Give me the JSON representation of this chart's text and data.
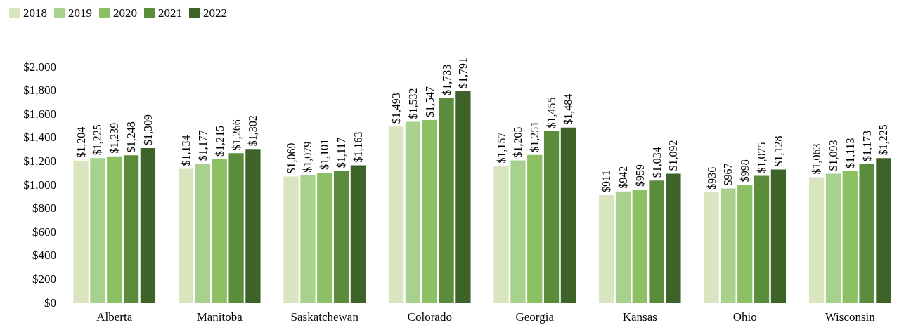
{
  "chart_data": {
    "type": "bar",
    "categories": [
      "Alberta",
      "Manitoba",
      "Saskatchewan",
      "Colorado",
      "Georgia",
      "Kansas",
      "Ohio",
      "Wisconsin"
    ],
    "series": [
      {
        "name": "2018",
        "color": "#d9e5bf",
        "values": [
          1204,
          1134,
          1069,
          1493,
          1157,
          911,
          936,
          1063
        ],
        "value_labels": [
          "$1,204",
          "$1,134",
          "$1,069",
          "$1,493",
          "$1,157",
          "$911",
          "$936",
          "$1,063"
        ]
      },
      {
        "name": "2019",
        "color": "#a9d18e",
        "values": [
          1225,
          1177,
          1079,
          1532,
          1205,
          942,
          967,
          1093
        ],
        "value_labels": [
          "$1,225",
          "$1,177",
          "$1,079",
          "$1,532",
          "$1,205",
          "$942",
          "$967",
          "$1,093"
        ]
      },
      {
        "name": "2020",
        "color": "#8cc063",
        "values": [
          1239,
          1215,
          1101,
          1547,
          1251,
          959,
          998,
          1113
        ],
        "value_labels": [
          "$1,239",
          "$1,215",
          "$1,101",
          "$1,547",
          "$1,251",
          "$959",
          "$998",
          "$1,113"
        ]
      },
      {
        "name": "2021",
        "color": "#5b8c3b",
        "values": [
          1248,
          1266,
          1117,
          1733,
          1455,
          1034,
          1075,
          1173
        ],
        "value_labels": [
          "$1,248",
          "$1,266",
          "$1,117",
          "$1,733",
          "$1,455",
          "$1,034",
          "$1,075",
          "$1,173"
        ]
      },
      {
        "name": "2022",
        "color": "#3e6329",
        "values": [
          1309,
          1302,
          1163,
          1791,
          1484,
          1092,
          1128,
          1225
        ],
        "value_labels": [
          "$1,309",
          "$1,302",
          "$1,163",
          "$1,791",
          "$1,484",
          "$1,092",
          "$1,128",
          "$1,225"
        ]
      }
    ],
    "ylim": [
      0,
      2000
    ],
    "yticks": [
      {
        "value": 0,
        "label": "$0"
      },
      {
        "value": 200,
        "label": "$200"
      },
      {
        "value": 400,
        "label": "$400"
      },
      {
        "value": 600,
        "label": "$600"
      },
      {
        "value": 800,
        "label": "$800"
      },
      {
        "value": 1000,
        "label": "$1,000"
      },
      {
        "value": 1200,
        "label": "$1,200"
      },
      {
        "value": 1400,
        "label": "$1,400"
      },
      {
        "value": 1600,
        "label": "$1,600"
      },
      {
        "value": 1800,
        "label": "$1,800"
      },
      {
        "value": 2000,
        "label": "$2,000"
      }
    ],
    "grid": false,
    "legend": "top left"
  }
}
